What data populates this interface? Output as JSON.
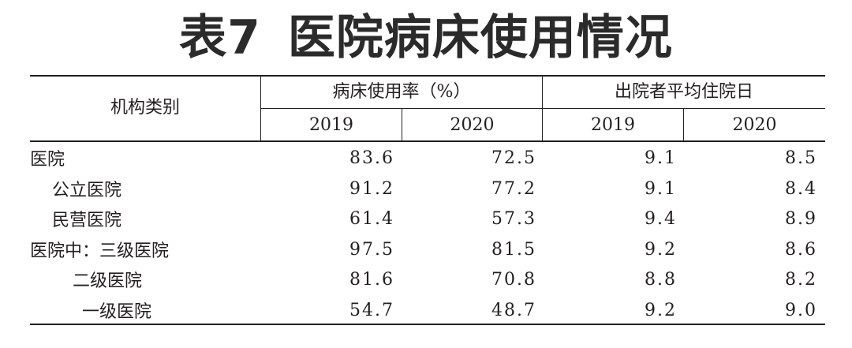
{
  "title": {
    "label": "表7",
    "text": "医院病床使用情况"
  },
  "header": {
    "row_label": "机构类别",
    "groups": [
      "病床使用率（%）",
      "出院者平均住院日"
    ],
    "years": [
      "2019",
      "2020",
      "2019",
      "2020"
    ]
  },
  "rows": [
    {
      "name": "医院",
      "indent": 0,
      "values": [
        "83.6",
        "72.5",
        "9.1",
        "8.5"
      ]
    },
    {
      "name": "公立医院",
      "indent": 1,
      "values": [
        "91.2",
        "77.2",
        "9.1",
        "8.4"
      ]
    },
    {
      "name": "民营医院",
      "indent": 1,
      "values": [
        "61.4",
        "57.3",
        "9.4",
        "8.9"
      ]
    },
    {
      "name": "医院中：三级医院",
      "indent": 0,
      "values": [
        "97.5",
        "81.5",
        "9.2",
        "8.6"
      ]
    },
    {
      "name": "二级医院",
      "indent": 2,
      "values": [
        "81.6",
        "70.8",
        "8.8",
        "8.2"
      ]
    },
    {
      "name": "一级医院",
      "indent": 3,
      "values": [
        "54.7",
        "48.7",
        "9.2",
        "9.0"
      ]
    }
  ]
}
